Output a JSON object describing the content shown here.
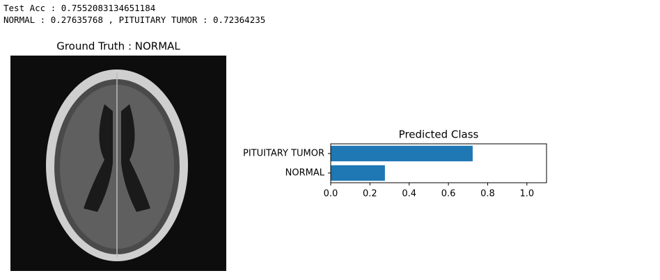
{
  "output_lines": [
    "Test Acc : 0.7552083134651184",
    "NORMAL : 0.27635768 , PITUITARY TUMOR : 0.72364235"
  ],
  "image": {
    "title": "Ground Truth : NORMAL"
  },
  "chart_data": {
    "type": "barh",
    "title": "Predicted Class",
    "categories": [
      "NORMAL",
      "PITUITARY TUMOR"
    ],
    "values": [
      0.27635768,
      0.72364235
    ],
    "color": "#1f77b4",
    "xlim": [
      0,
      1.1
    ],
    "xticks": [
      {
        "value": 0,
        "label": "0.0"
      },
      0.2,
      0.4,
      0.6,
      0.8,
      {
        "value": 1,
        "label": "1.0"
      }
    ]
  }
}
